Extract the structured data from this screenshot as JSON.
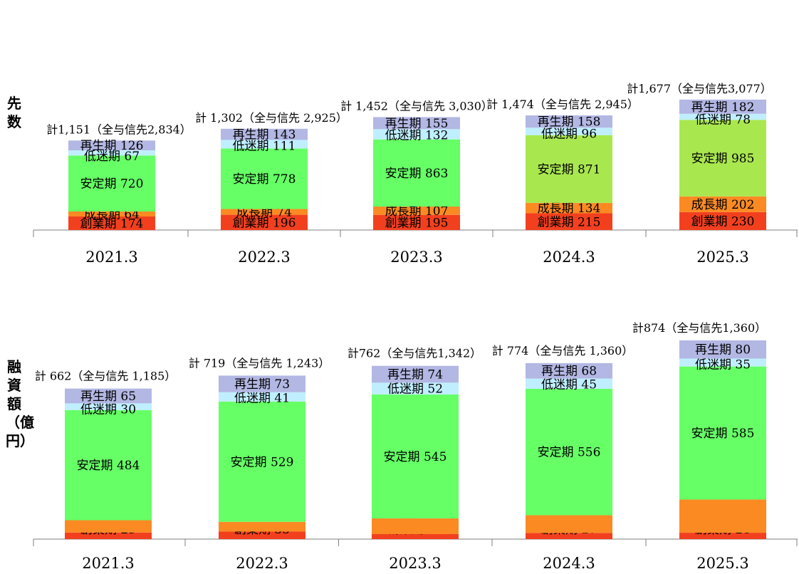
{
  "chart_data": [
    {
      "type": "bar",
      "ylabel": "先数",
      "categories": [
        "2021.3",
        "2022.3",
        "2023.3",
        "2024.3",
        "2025.3"
      ],
      "series": [
        {
          "name": "創業期",
          "values": [
            174,
            196,
            195,
            215,
            230
          ],
          "color": "#f2401f"
        },
        {
          "name": "成長期",
          "values": [
            64,
            74,
            107,
            134,
            202
          ],
          "color": "#fb8a23"
        },
        {
          "name": "安定期",
          "values": [
            720,
            778,
            863,
            871,
            985
          ],
          "colors": [
            "#66ff66",
            "#66ff66",
            "#66ff66",
            "#a9e74f",
            "#a9e74f"
          ]
        },
        {
          "name": "低迷期",
          "values": [
            67,
            111,
            132,
            96,
            78
          ],
          "color": "#bfefff"
        },
        {
          "name": "再生期",
          "values": [
            126,
            143,
            155,
            158,
            182
          ],
          "color": "#b3b7e3"
        }
      ],
      "totals": [
        "計1,151（全与信先2,834）",
        "計 1,302（全与信先 2,925）",
        "計 1,452（全与信先 3,030）",
        "計 1,474（全与信先 2,945）",
        "計1,677（全与信先3,077）"
      ],
      "ylim": [
        0,
        1720
      ]
    },
    {
      "type": "bar",
      "ylabel": "融資額（億円）",
      "categories": [
        "2021.3",
        "2022.3",
        "2023.3",
        "2024.3",
        "2025.3"
      ],
      "series": [
        {
          "name": "創業期",
          "values": [
            29,
            33,
            22,
            27,
            28
          ],
          "color": "#f2401f"
        },
        {
          "name": "成長期",
          "values": [
            54,
            43,
            69,
            78,
            146
          ],
          "color": "#fb8a23"
        },
        {
          "name": "安定期",
          "values": [
            484,
            529,
            545,
            556,
            585
          ],
          "color": "#66ff66"
        },
        {
          "name": "低迷期",
          "values": [
            30,
            41,
            52,
            45,
            35
          ],
          "color": "#bfefff"
        },
        {
          "name": "再生期",
          "values": [
            65,
            73,
            74,
            68,
            80
          ],
          "color": "#b3b7e3"
        }
      ],
      "totals": [
        "計 662（全与信先 1,185）",
        "計 719（全与信先 1,243）",
        "計762（全与信先1,342）",
        "計 774（全与信先 1,360）",
        "計874（全与信先1,360）"
      ],
      "ylim": [
        0,
        874
      ]
    }
  ]
}
